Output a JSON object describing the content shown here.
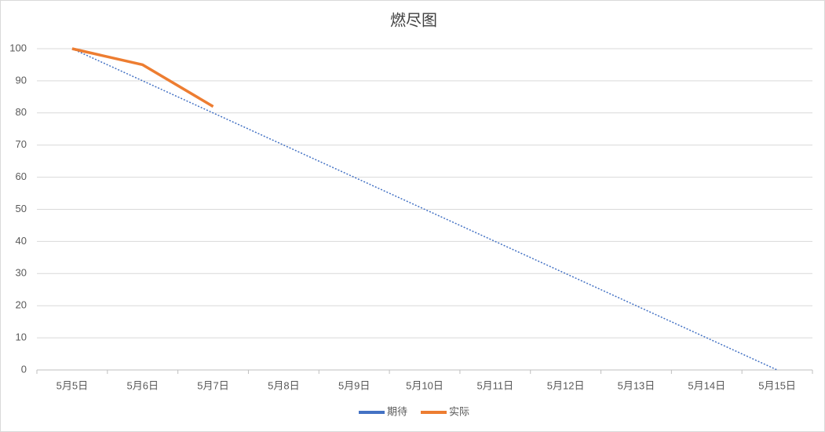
{
  "chart_data": {
    "type": "line",
    "title": "燃尽图",
    "categories": [
      "5月5日",
      "5月6日",
      "5月7日",
      "5月8日",
      "5月9日",
      "5月10日",
      "5月11日",
      "5月12日",
      "5月13日",
      "5月14日",
      "5月15日"
    ],
    "series": [
      {
        "name": "期待",
        "color": "#4472c4",
        "line_style": "dotted",
        "values": [
          100,
          90,
          80,
          70,
          60,
          50,
          40,
          30,
          20,
          10,
          0
        ]
      },
      {
        "name": "实际",
        "color": "#ed7d31",
        "line_style": "solid",
        "values": [
          100,
          95,
          82,
          null,
          null,
          null,
          null,
          null,
          null,
          null,
          null
        ]
      }
    ],
    "ylim": [
      0,
      100
    ],
    "yticks": [
      0,
      10,
      20,
      30,
      40,
      50,
      60,
      70,
      80,
      90,
      100
    ],
    "grid": true,
    "legend": "bottom"
  }
}
